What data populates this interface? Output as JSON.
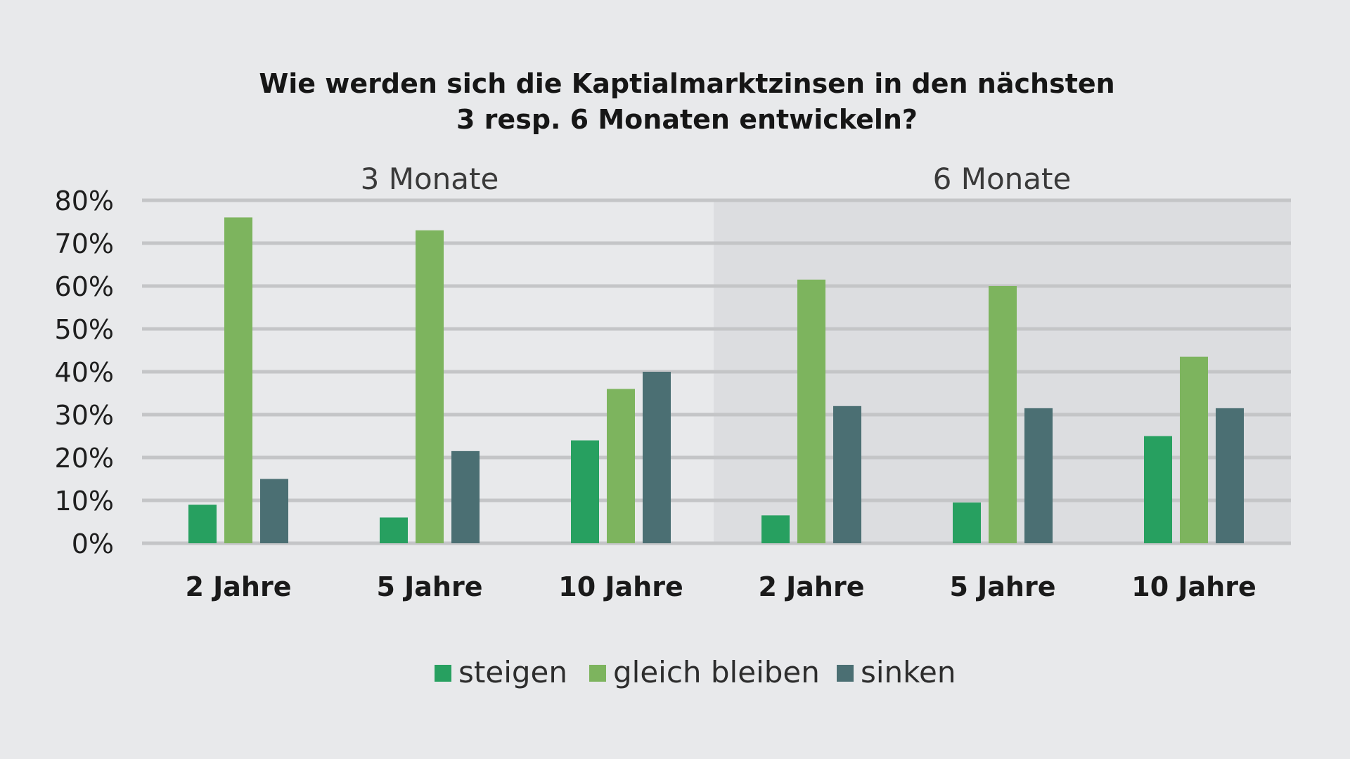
{
  "chart_data": {
    "type": "bar",
    "title": [
      "Wie werden sich die Kaptialmarktzinsen in den nächsten",
      "3 resp. 6 Monaten entwickeln?"
    ],
    "groups": [
      {
        "label": "3 Monate",
        "categories": [
          "2 Jahre",
          "5 Jahre",
          "10 Jahre"
        ]
      },
      {
        "label": "6 Monate",
        "categories": [
          "2 Jahre",
          "5 Jahre",
          "10 Jahre"
        ]
      }
    ],
    "categories": [
      "2 Jahre",
      "5 Jahre",
      "10 Jahre",
      "2 Jahre",
      "5 Jahre",
      "10 Jahre"
    ],
    "series": [
      {
        "name": "steigen",
        "color": "#27a060",
        "values": [
          9,
          6,
          24,
          6.5,
          9.5,
          25
        ]
      },
      {
        "name": "gleich bleiben",
        "color": "#7db45e",
        "values": [
          76,
          73,
          36,
          61.5,
          60,
          43.5
        ]
      },
      {
        "name": "sinken",
        "color": "#4b6f73",
        "values": [
          15,
          21.5,
          40,
          32,
          31.5,
          31.5
        ]
      }
    ],
    "ylim": [
      0,
      80
    ],
    "yticks": [
      "0%",
      "10%",
      "20%",
      "30%",
      "40%",
      "50%",
      "60%",
      "70%",
      "80%"
    ],
    "xlabel": "",
    "ylabel": "",
    "grid": true,
    "legend_position": "bottom-center",
    "highlight_color": "#dcdde0",
    "grid_color": "#c4c5c7"
  }
}
